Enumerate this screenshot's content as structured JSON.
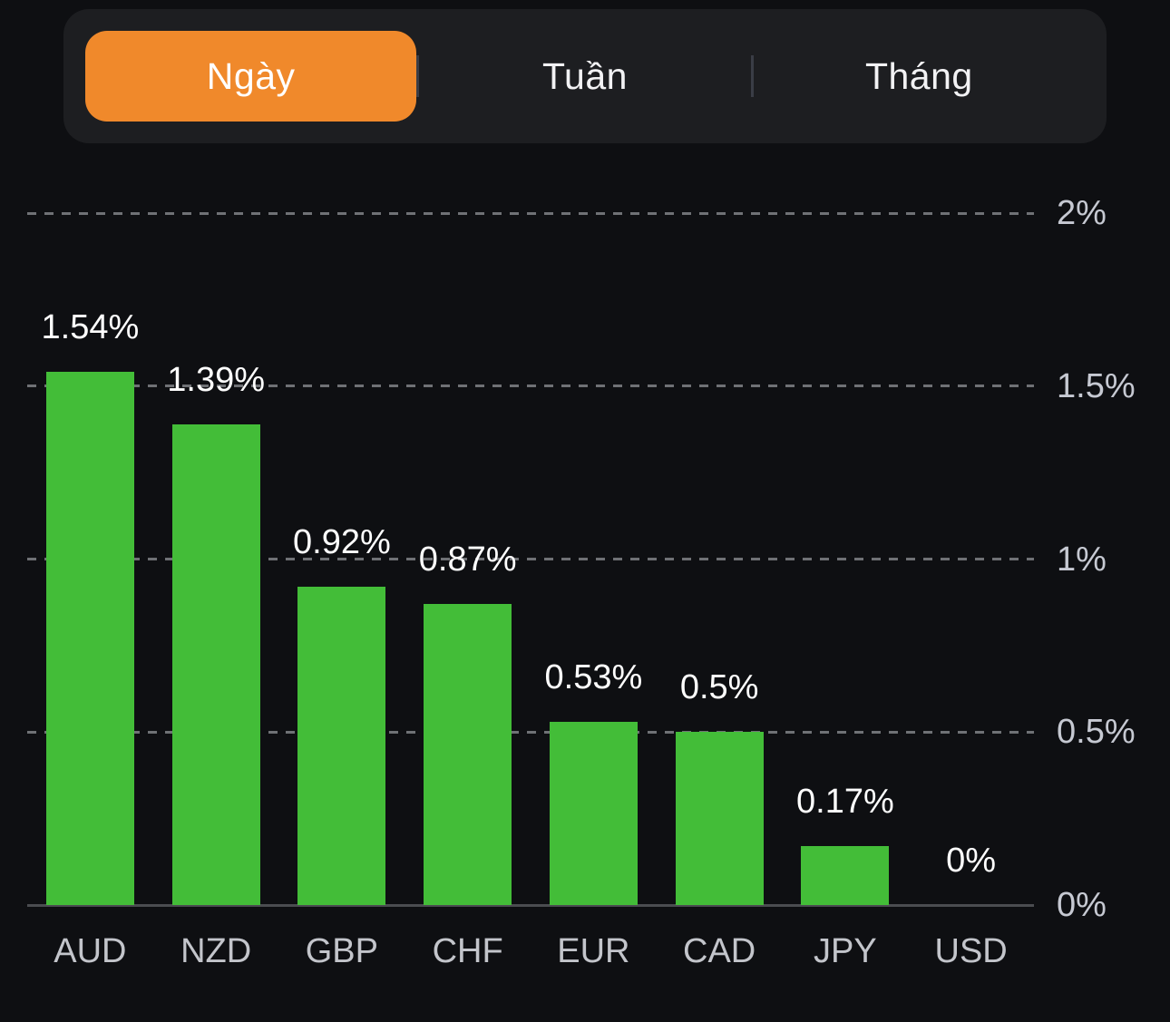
{
  "tabs": {
    "items": [
      {
        "id": "day",
        "label": "Ngày",
        "selected": true
      },
      {
        "id": "week",
        "label": "Tuần",
        "selected": false
      },
      {
        "id": "month",
        "label": "Tháng",
        "selected": false
      }
    ]
  },
  "chart_data": {
    "type": "bar",
    "title": "",
    "xlabel": "",
    "ylabel": "",
    "categories": [
      "AUD",
      "NZD",
      "GBP",
      "CHF",
      "EUR",
      "CAD",
      "JPY",
      "USD"
    ],
    "values": [
      1.54,
      1.39,
      0.92,
      0.87,
      0.53,
      0.5,
      0.17,
      0
    ],
    "value_labels": [
      "1.54%",
      "1.39%",
      "0.92%",
      "0.87%",
      "0.53%",
      "0.5%",
      "0.17%",
      "0%"
    ],
    "ylim": [
      0,
      2
    ],
    "yticks": [
      {
        "value": 0,
        "label": "0%"
      },
      {
        "value": 0.5,
        "label": "0.5%"
      },
      {
        "value": 1,
        "label": "1%"
      },
      {
        "value": 1.5,
        "label": "1.5%"
      },
      {
        "value": 2,
        "label": "2%"
      }
    ],
    "grid": "dashed-horizontal",
    "legend": false,
    "yaxis_position": "right"
  },
  "colors": {
    "background": "#0E0F12",
    "segment_container": "#1D1E21",
    "segment_selected": "#F0892B",
    "segment_divider": "#3A3D46",
    "bar": "#43BD38",
    "gridline": "#6F7175",
    "axis_line": "#4A4C50",
    "tick_label": "#C6C9D2",
    "category_label": "#C3C5CB",
    "value_label": "#FFFFFF"
  }
}
